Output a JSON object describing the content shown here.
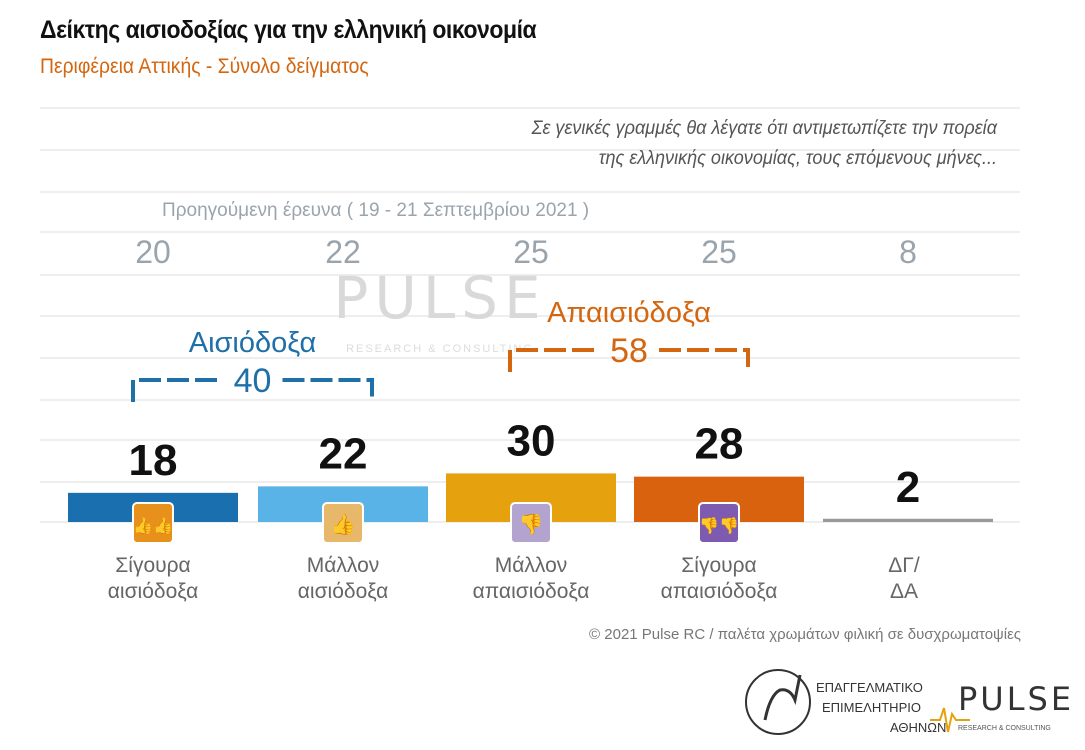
{
  "header": {
    "title": "Δείκτης αισιοδοξίας για την ελληνική οικονομία",
    "subtitle": "Περιφέρεια Αττικής - Σύνολο δείγματος"
  },
  "question_lines": [
    "Σε γενικές γραμμές θα λέγατε ότι αντιμετωπίζετε την πορεία",
    "της ελληνικής οικονομίας, τους επόμενους μήνες..."
  ],
  "chart_data": {
    "type": "bar",
    "categories": [
      "Σίγουρα αισιόδοξα",
      "Μάλλον αισιόδοξα",
      "Μάλλον απαισιόδοξα",
      "Σίγουρα απαισιόδοξα",
      "ΔΓ/ ΔΑ"
    ],
    "category_lines": [
      [
        "Σίγουρα",
        "αισιόδοξα"
      ],
      [
        "Μάλλον",
        "αισιόδοξα"
      ],
      [
        "Μάλλον",
        "απαισιόδοξα"
      ],
      [
        "Σίγουρα",
        "απαισιόδοξα"
      ],
      [
        "ΔΓ/",
        "ΔΑ"
      ]
    ],
    "values": [
      18,
      22,
      30,
      28,
      2
    ],
    "previous": {
      "label": "Προηγούμενη έρευνα  ( 19 - 21 Σεπτεμβρίου 2021 )",
      "values": [
        20,
        22,
        25,
        25,
        8
      ]
    },
    "colors": [
      "#1a6fae",
      "#5ab3e6",
      "#e5a10e",
      "#d8620e",
      "#999999"
    ],
    "icons": [
      "double-thumbs-up",
      "thumbs-up",
      "thumbs-down",
      "double-thumbs-down",
      ""
    ],
    "icon_colors": [
      "#e8901c",
      "#e8b86a",
      "#b3a4cf",
      "#7e5bb0"
    ],
    "groups": [
      {
        "label": "Αισιόδοξα",
        "value": "40",
        "color": "#1f6fa8"
      },
      {
        "label": "Απαισιόδοξα",
        "value": "58",
        "color": "#d4660f"
      }
    ]
  },
  "watermark": {
    "brand": "PULSE",
    "tagline": "RESEARCH & CONSULTING"
  },
  "footer": "© 2021 Pulse RC   /   παλέτα χρωμάτων φιλική σε δυσχρωματοψίες",
  "logos": {
    "chamber": [
      "ΕΠΑΓΓΕΛΜΑΤΙΚΟ",
      "ΕΠΙΜΕΛΗΤΗΡΙΟ",
      "ΑΘΗΝΩΝ"
    ],
    "chamber_seal": "ΠΡΟΜΗΘΕΥΣ",
    "pulse": "PULSE",
    "pulse_tagline": "RESEARCH & CONSULTING"
  }
}
